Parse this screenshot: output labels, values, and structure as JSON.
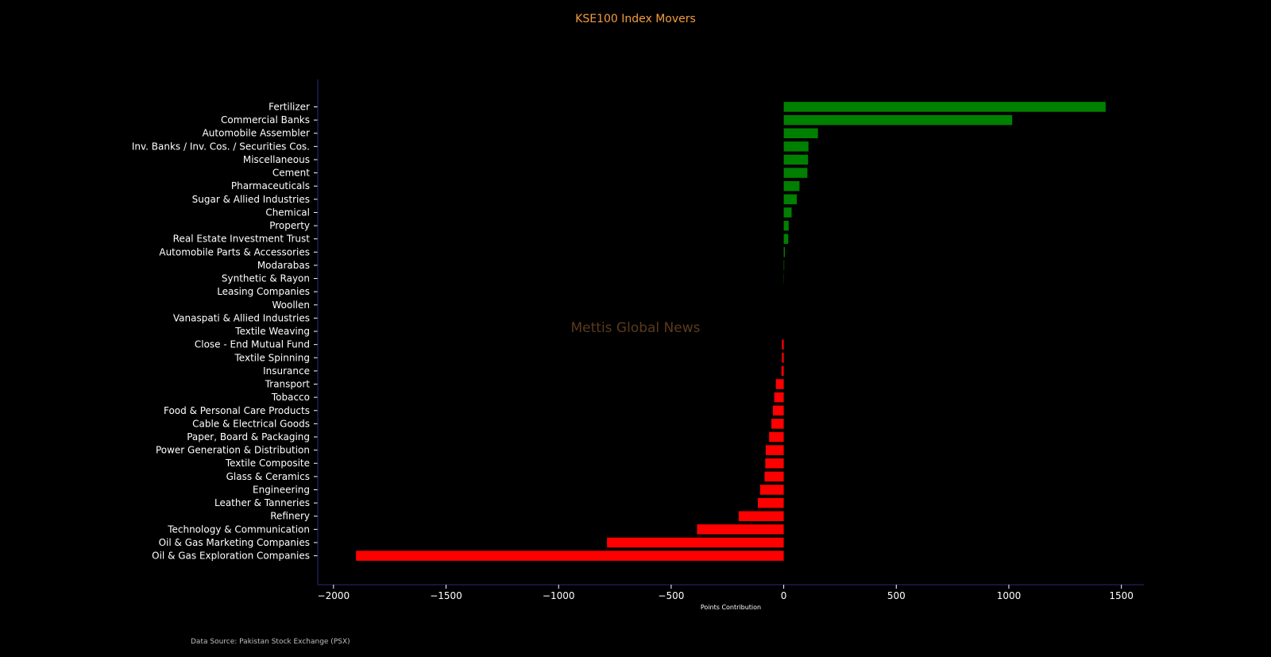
{
  "chart_data": {
    "type": "bar",
    "orientation": "horizontal",
    "title": "KSE100 Index Movers",
    "xlabel": "Points Contribution",
    "ylabel": "",
    "xlim": [
      -2070,
      1600
    ],
    "xticks": [
      -2000,
      -1500,
      -1000,
      -500,
      0,
      500,
      1000,
      1500
    ],
    "xtick_labels": [
      "−2000",
      "−1500",
      "−1000",
      "−500",
      "0",
      "500",
      "1000",
      "1500"
    ],
    "grid": false,
    "legend": "none",
    "categories": [
      "Fertilizer",
      "Commercial Banks",
      "Automobile Assembler",
      "Inv. Banks / Inv. Cos. / Securities Cos.",
      "Miscellaneous",
      "Cement",
      "Pharmaceuticals",
      "Sugar & Allied Industries",
      "Chemical",
      "Property",
      "Real Estate Investment Trust",
      "Automobile Parts & Accessories",
      "Modarabas",
      "Synthetic & Rayon",
      "Leasing Companies",
      "Woollen",
      "Vanaspati & Allied Industries",
      "Textile Weaving",
      "Close - End Mutual Fund",
      "Textile Spinning",
      "Insurance",
      "Transport",
      "Tobacco",
      "Food & Personal Care Products",
      "Cable & Electrical Goods",
      "Paper, Board & Packaging",
      "Power Generation & Distribution",
      "Textile Composite",
      "Glass & Ceramics",
      "Engineering",
      "Leather & Tanneries",
      "Refinery",
      "Technology & Communication",
      "Oil & Gas Marketing Companies",
      "Oil & Gas Exploration Companies"
    ],
    "values": [
      1430,
      1015,
      152,
      110,
      108,
      105,
      70,
      58,
      35,
      22,
      20,
      5,
      2,
      1,
      0,
      0,
      0,
      0,
      -8,
      -8,
      -10,
      -35,
      -42,
      -48,
      -55,
      -65,
      -80,
      -82,
      -85,
      -105,
      -115,
      -200,
      -385,
      -785,
      -1900
    ],
    "positive_color": "#008000",
    "negative_color": "#ff0000",
    "source": "Data Source: Pakistan Stock Exchange (PSX)",
    "watermark": "Mettis Global News"
  }
}
